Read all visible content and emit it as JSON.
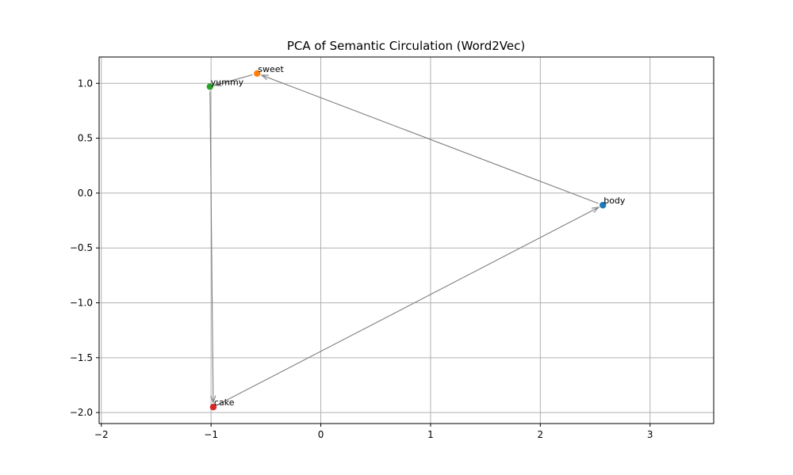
{
  "chart_data": {
    "type": "scatter",
    "title": "PCA of Semantic Circulation (Word2Vec)",
    "xlabel": "",
    "ylabel": "",
    "xlim": [
      -2.02,
      3.58
    ],
    "ylim": [
      -2.1,
      1.24
    ],
    "xticks": [
      -2,
      -1,
      0,
      1,
      2,
      3
    ],
    "yticks": [
      -2.0,
      -1.5,
      -1.0,
      -0.5,
      0.0,
      0.5,
      1.0
    ],
    "grid": true,
    "points": [
      {
        "label": "body",
        "x": 2.57,
        "y": -0.11,
        "color": "#1f77b4"
      },
      {
        "label": "sweet",
        "x": -0.58,
        "y": 1.09,
        "color": "#ff7f0e"
      },
      {
        "label": "yummy",
        "x": -1.01,
        "y": 0.97,
        "color": "#2ca02c"
      },
      {
        "label": "cake",
        "x": -0.98,
        "y": -1.95,
        "color": "#d62728"
      }
    ],
    "arrows": [
      {
        "from": "body",
        "to": "sweet"
      },
      {
        "from": "sweet",
        "to": "yummy"
      },
      {
        "from": "yummy",
        "to": "cake"
      },
      {
        "from": "cake",
        "to": "body"
      }
    ],
    "arrow_color": "#808080"
  }
}
